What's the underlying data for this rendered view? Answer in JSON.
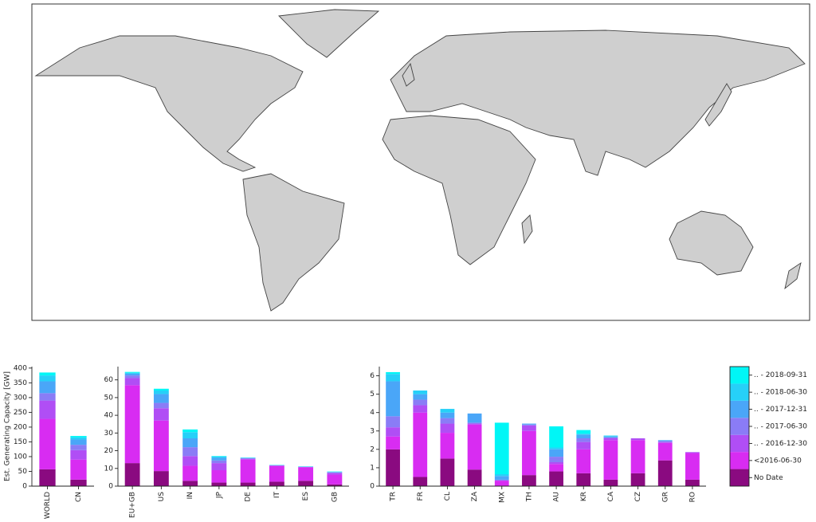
{
  "legend": {
    "position": "right",
    "entries": [
      {
        "name": "No Date",
        "color": "#8a0a80"
      },
      {
        "name": "<2016-06-30",
        "color": "#d82cf2"
      },
      {
        "name": ".. - 2016-12-30",
        "color": "#b04ef5"
      },
      {
        "name": ".. - 2017-06-30",
        "color": "#8a7cf6"
      },
      {
        "name": ".. - 2017-12-31",
        "color": "#4aa6f8"
      },
      {
        "name": ".. - 2018-06-30",
        "color": "#26d0f8"
      },
      {
        "name": ".. - 2018-09-31",
        "color": "#00f6f6"
      }
    ]
  },
  "chart_data": [
    {
      "type": "bar",
      "stacked": true,
      "ylabel": "Est. Generating Capacity [GW]",
      "categories": [
        "WORLD",
        "CN"
      ],
      "ylim": [
        0,
        405
      ],
      "yticks": [
        0,
        50,
        100,
        150,
        200,
        250,
        300,
        350,
        400
      ],
      "series": [
        {
          "values": [
            57,
            22
          ]
        },
        {
          "values": [
            171,
            68
          ]
        },
        {
          "values": [
            62,
            32
          ]
        },
        {
          "values": [
            25,
            18
          ]
        },
        {
          "values": [
            40,
            18
          ]
        },
        {
          "values": [
            20,
            7
          ]
        },
        {
          "values": [
            10,
            5
          ]
        }
      ]
    },
    {
      "type": "bar",
      "stacked": true,
      "categories": [
        "EU+GB",
        "US",
        "IN",
        "JP",
        "DE",
        "IT",
        "ES",
        "GB"
      ],
      "ylim": [
        0,
        67.5
      ],
      "yticks": [
        0,
        10,
        20,
        30,
        40,
        50,
        60
      ],
      "series": [
        {
          "values": [
            13,
            8.5,
            3,
            2,
            2,
            2.5,
            3,
            1
          ]
        },
        {
          "values": [
            44,
            28.5,
            8.5,
            7,
            13,
            9,
            7.7,
            5.5
          ]
        },
        {
          "values": [
            4,
            7,
            5.5,
            4,
            0.5,
            0.1,
            0.1,
            1
          ]
        },
        {
          "values": [
            1.5,
            3,
            5,
            1.5,
            0.2,
            0.1,
            0.1,
            0.2
          ]
        },
        {
          "values": [
            1,
            5,
            5,
            1.5,
            0.2,
            0.1,
            0.1,
            0.3
          ]
        },
        {
          "values": [
            0.5,
            2,
            3.5,
            0.7,
            0.2,
            0.1,
            0.1,
            0.2
          ]
        },
        {
          "values": [
            0.5,
            1,
            1.5,
            0.3,
            0.1,
            0.1,
            0.1,
            0.1
          ]
        }
      ]
    },
    {
      "type": "bar",
      "stacked": true,
      "categories": [
        "TR",
        "FR",
        "CL",
        "ZA",
        "MX",
        "TH",
        "AU",
        "KR",
        "CA",
        "CZ",
        "GR",
        "RO"
      ],
      "ylim": [
        0,
        6.5
      ],
      "yticks": [
        0,
        1,
        2,
        3,
        4,
        5,
        6
      ],
      "series": [
        {
          "values": [
            2,
            0.5,
            1.5,
            0.9,
            0,
            0.6,
            0.8,
            0.7,
            0.35,
            0.7,
            1.4,
            0.35
          ]
        },
        {
          "values": [
            0.7,
            3.5,
            1.4,
            2.45,
            0.3,
            2.4,
            0.4,
            1.3,
            2.15,
            1.8,
            0.95,
            1.45
          ]
        },
        {
          "values": [
            0.5,
            0.4,
            0.5,
            0.05,
            0,
            0.3,
            0.1,
            0.4,
            0.1,
            0.1,
            0.05,
            0.05
          ]
        },
        {
          "values": [
            0.6,
            0.3,
            0.3,
            0.05,
            0.05,
            0.05,
            0.3,
            0.2,
            0.05,
            0,
            0.05,
            0
          ]
        },
        {
          "values": [
            1.9,
            0.3,
            0.3,
            0.5,
            0.2,
            0.05,
            0.4,
            0.2,
            0.05,
            0,
            0.05,
            0
          ]
        },
        {
          "values": [
            0.4,
            0.2,
            0.2,
            0,
            0.1,
            0,
            0.1,
            0.05,
            0.05,
            0,
            0,
            0
          ]
        },
        {
          "values": [
            0.1,
            0,
            0,
            0,
            2.8,
            0,
            1.15,
            0.2,
            0,
            0,
            0,
            0
          ]
        }
      ]
    }
  ]
}
